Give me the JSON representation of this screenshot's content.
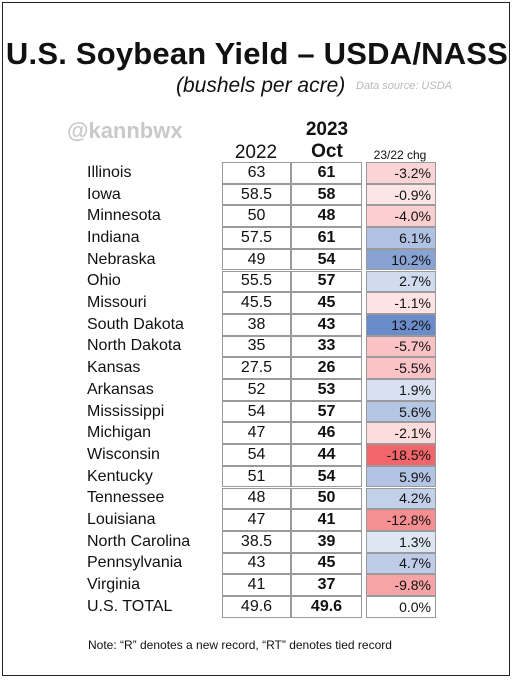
{
  "title": "U.S. Soybean Yield – USDA/NASS",
  "subtitle": "(bushels per acre)",
  "source": "Data source: USDA",
  "handle": "@kannbwx",
  "note": "Note: “R” denotes a new record, “RT” denotes tied record",
  "colors": {
    "positive": "#5b7fc4",
    "negative": "#f0555a",
    "neutral": "#ffffff"
  },
  "chart_data": {
    "type": "table",
    "title": "U.S. Soybean Yield – USDA/NASS",
    "subtitle": "(bushels per acre)",
    "columns": [
      "2022",
      "2023 Oct",
      "23/22 chg"
    ],
    "header_2022": "2022",
    "header_2023_line1": "2023",
    "header_2023_line2": "Oct",
    "header_chg": "23/22 chg",
    "rows": [
      {
        "state": "Illinois",
        "y2022": "63",
        "y2023": "61",
        "chg": "-3.2%",
        "chg_value": -3.2
      },
      {
        "state": "Iowa",
        "y2022": "58.5",
        "y2023": "58",
        "chg": "-0.9%",
        "chg_value": -0.9
      },
      {
        "state": "Minnesota",
        "y2022": "50",
        "y2023": "48",
        "chg": "-4.0%",
        "chg_value": -4.0
      },
      {
        "state": "Indiana",
        "y2022": "57.5",
        "y2023": "61",
        "chg": "6.1%",
        "chg_value": 6.1
      },
      {
        "state": "Nebraska",
        "y2022": "49",
        "y2023": "54",
        "chg": "10.2%",
        "chg_value": 10.2
      },
      {
        "state": "Ohio",
        "y2022": "55.5",
        "y2023": "57",
        "chg": "2.7%",
        "chg_value": 2.7
      },
      {
        "state": "Missouri",
        "y2022": "45.5",
        "y2023": "45",
        "chg": "-1.1%",
        "chg_value": -1.1
      },
      {
        "state": "South Dakota",
        "y2022": "38",
        "y2023": "43",
        "chg": "13.2%",
        "chg_value": 13.2
      },
      {
        "state": "North Dakota",
        "y2022": "35",
        "y2023": "33",
        "chg": "-5.7%",
        "chg_value": -5.7
      },
      {
        "state": "Kansas",
        "y2022": "27.5",
        "y2023": "26",
        "chg": "-5.5%",
        "chg_value": -5.5
      },
      {
        "state": "Arkansas",
        "y2022": "52",
        "y2023": "53",
        "chg": "1.9%",
        "chg_value": 1.9
      },
      {
        "state": "Mississippi",
        "y2022": "54",
        "y2023": "57",
        "chg": "5.6%",
        "chg_value": 5.6
      },
      {
        "state": "Michigan",
        "y2022": "47",
        "y2023": "46",
        "chg": "-2.1%",
        "chg_value": -2.1
      },
      {
        "state": "Wisconsin",
        "y2022": "54",
        "y2023": "44",
        "chg": "-18.5%",
        "chg_value": -18.5
      },
      {
        "state": "Kentucky",
        "y2022": "51",
        "y2023": "54",
        "chg": "5.9%",
        "chg_value": 5.9
      },
      {
        "state": "Tennessee",
        "y2022": "48",
        "y2023": "50",
        "chg": "4.2%",
        "chg_value": 4.2
      },
      {
        "state": "Louisiana",
        "y2022": "47",
        "y2023": "41",
        "chg": "-12.8%",
        "chg_value": -12.8
      },
      {
        "state": "North Carolina",
        "y2022": "38.5",
        "y2023": "39",
        "chg": "1.3%",
        "chg_value": 1.3
      },
      {
        "state": "Pennsylvania",
        "y2022": "43",
        "y2023": "45",
        "chg": "4.7%",
        "chg_value": 4.7
      },
      {
        "state": "Virginia",
        "y2022": "41",
        "y2023": "37",
        "chg": "-9.8%",
        "chg_value": -9.8
      },
      {
        "state": "U.S. TOTAL",
        "y2022": "49.6",
        "y2023": "49.6",
        "chg": "0.0%",
        "chg_value": 0.0
      }
    ]
  }
}
